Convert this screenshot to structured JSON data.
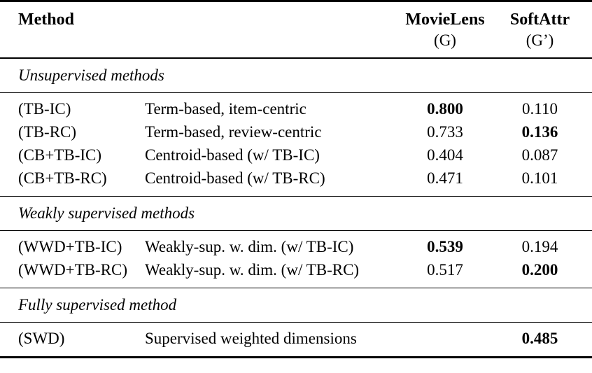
{
  "table": {
    "header": {
      "method": "Method",
      "col1_name": "MovieLens",
      "col1_sub": "(G)",
      "col2_name": "SoftAttr",
      "col2_sub": "(G’)"
    },
    "sections": [
      {
        "title": "Unsupervised methods",
        "rows": [
          {
            "code": "(TB-IC)",
            "desc": "Term-based, item-centric",
            "movielens": "0.800",
            "movielens_bold": true,
            "softattr": "0.110",
            "softattr_bold": false
          },
          {
            "code": "(TB-RC)",
            "desc": "Term-based, review-centric",
            "movielens": "0.733",
            "movielens_bold": false,
            "softattr": "0.136",
            "softattr_bold": true
          },
          {
            "code": "(CB+TB-IC)",
            "desc": "Centroid-based (w/ TB-IC)",
            "movielens": "0.404",
            "movielens_bold": false,
            "softattr": "0.087",
            "softattr_bold": false
          },
          {
            "code": "(CB+TB-RC)",
            "desc": "Centroid-based (w/ TB-RC)",
            "movielens": "0.471",
            "movielens_bold": false,
            "softattr": "0.101",
            "softattr_bold": false
          }
        ]
      },
      {
        "title": "Weakly supervised methods",
        "rows": [
          {
            "code": "(WWD+TB-IC)",
            "desc": "Weakly-sup. w. dim. (w/ TB-IC)",
            "movielens": "0.539",
            "movielens_bold": true,
            "softattr": "0.194",
            "softattr_bold": false
          },
          {
            "code": "(WWD+TB-RC)",
            "desc": "Weakly-sup. w. dim. (w/ TB-RC)",
            "movielens": "0.517",
            "movielens_bold": false,
            "softattr": "0.200",
            "softattr_bold": true
          }
        ]
      },
      {
        "title": "Fully supervised method",
        "rows": [
          {
            "code": "(SWD)",
            "desc": "Supervised weighted dimensions",
            "movielens": "",
            "movielens_bold": false,
            "softattr": "0.485",
            "softattr_bold": true
          }
        ]
      }
    ]
  }
}
